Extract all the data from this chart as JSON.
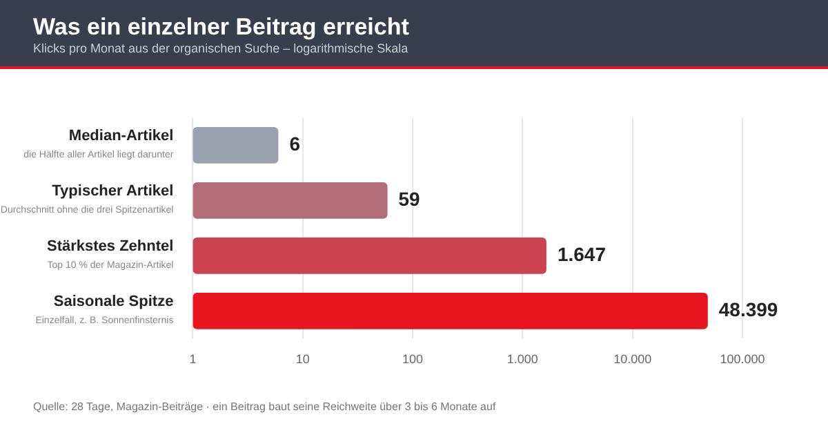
{
  "chart_data": {
    "type": "bar",
    "orientation": "horizontal",
    "title": "Was ein einzelner Beitrag erreicht",
    "subtitle": "Klicks pro Monat aus der organischen Suche – logarithmische Skala",
    "categories": [
      "Median-Artikel",
      "Typischer Artikel",
      "Stärkstes Zehntel",
      "Saisonale Spitze"
    ],
    "values": [
      6,
      59,
      1647,
      48399
    ],
    "colors": [
      "#9aa0ad",
      "#b36d77",
      "#cc444f",
      "#e8151f"
    ],
    "value_labels": [
      "6",
      "59",
      "1.647",
      "48.399"
    ],
    "log": "x",
    "xlim": [
      1,
      100000
    ],
    "xticks": [
      1,
      10,
      100,
      {
        "value": 1000,
        "label": "1.000"
      },
      {
        "value": 10000,
        "label": "10.000"
      },
      {
        "value": 100000,
        "label": "100.000"
      }
    ],
    "grid": "x",
    "legend": false,
    "annotations": [
      "die Hälfte aller Artikel liegt darunter",
      "Durchschnitt ohne die drei Spitzenartikel",
      "Top 10 % der Magazin-Artikel",
      "Einzelfall, z. B. Sonnenfinsternis",
      "Quelle: 28 Tage, Magazin-Beiträge · ein Beitrag baut seine Reichweite über 3 bis 6 Monate auf"
    ]
  }
}
